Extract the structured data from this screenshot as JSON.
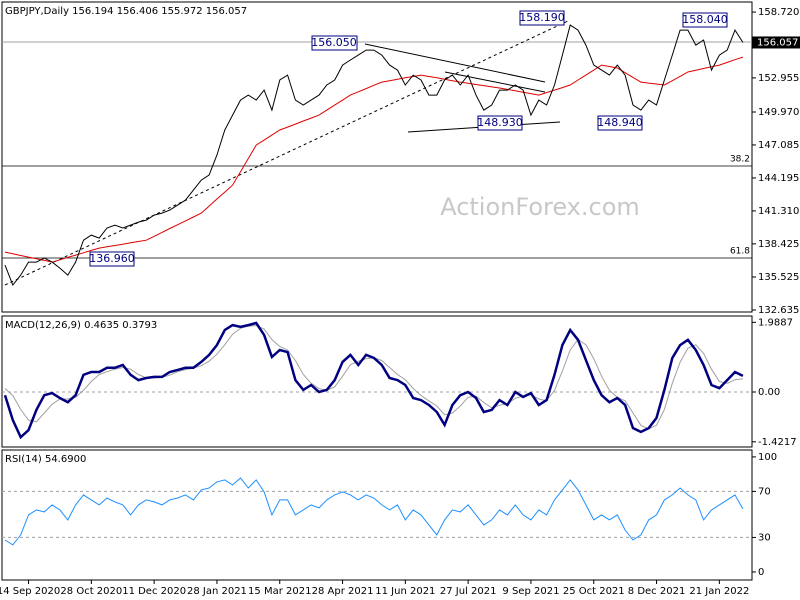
{
  "chart_data": [
    {
      "type": "line",
      "title": "GBPJPY,Daily  156.194 156.406 155.972 156.057",
      "watermark": "ActionForex.com",
      "categories": [
        null,
        null,
        null,
        "14 Sep 2020",
        null,
        null,
        null,
        null,
        null,
        null,
        null,
        "28 Oct 2020",
        null,
        null,
        null,
        null,
        null,
        null,
        null,
        "11 Dec 2020",
        null,
        null,
        null,
        null,
        null,
        null,
        null,
        "28 Jan 2021",
        null,
        null,
        null,
        null,
        null,
        null,
        null,
        "15 Mar 2021",
        null,
        null,
        null,
        null,
        null,
        null,
        null,
        "28 Apr 2021",
        null,
        null,
        null,
        null,
        null,
        null,
        null,
        "11 Jun 2021",
        null,
        null,
        null,
        null,
        null,
        null,
        null,
        "27 Jul 2021",
        null,
        null,
        null,
        null,
        null,
        null,
        null,
        "9 Sep 2021",
        null,
        null,
        null,
        null,
        null,
        null,
        null,
        "25 Oct 2021",
        null,
        null,
        null,
        null,
        null,
        null,
        null,
        "8 Dec 2021",
        null,
        null,
        null,
        null,
        null,
        null,
        null,
        "21 Jan 2022",
        null,
        null,
        null
      ],
      "series": [
        {
          "color": "#000000",
          "values": [
            136.57,
            134.82,
            135.69,
            136.83,
            136.83,
            137.18,
            136.83,
            136.3,
            135.69,
            136.83,
            138.75,
            139.19,
            138.93,
            139.81,
            140.07,
            139.81,
            140.07,
            140.33,
            140.51,
            140.94,
            141.12,
            141.38,
            141.82,
            142.26,
            143.13,
            144.01,
            144.45,
            146.2,
            148.39,
            149.7,
            151.01,
            151.45,
            151.01,
            151.89,
            150.14,
            152.77,
            153.2,
            151.01,
            150.58,
            151.01,
            151.45,
            152.33,
            152.77,
            154.08,
            154.52,
            154.95,
            155.39,
            155.39,
            154.95,
            154.08,
            153.64,
            152.33,
            153.2,
            152.77,
            151.45,
            151.45,
            152.77,
            153.2,
            152.33,
            153.2,
            151.45,
            150.14,
            150.58,
            151.89,
            151.89,
            152.33,
            151.89,
            149.7,
            151.01,
            150.58,
            152.33,
            154.95,
            157.58,
            157.14,
            155.83,
            154.08,
            153.64,
            153.2,
            154.08,
            153.2,
            150.58,
            150.14,
            151.01,
            150.58,
            152.77,
            154.95,
            157.14,
            157.14,
            155.83,
            156.27,
            153.64,
            154.95,
            155.39,
            157.14,
            156.06
          ]
        },
        {
          "color": "#e00000",
          "values": [
            137.7,
            137.56,
            137.41,
            137.27,
            137.12,
            136.98,
            136.83,
            137.03,
            137.24,
            137.44,
            137.64,
            137.85,
            138.05,
            138.17,
            138.28,
            138.4,
            138.52,
            138.63,
            138.75,
            139.09,
            139.43,
            139.77,
            140.1,
            140.44,
            140.78,
            141.12,
            141.73,
            142.35,
            142.96,
            143.57,
            144.74,
            145.9,
            147.07,
            147.51,
            147.95,
            148.39,
            148.65,
            148.91,
            149.18,
            149.44,
            149.7,
            150.14,
            150.57,
            151.01,
            151.45,
            151.74,
            152.02,
            152.31,
            152.59,
            152.71,
            152.83,
            152.96,
            153.08,
            153.2,
            153.08,
            152.96,
            152.83,
            152.71,
            152.59,
            152.49,
            152.38,
            152.28,
            152.17,
            152.07,
            151.95,
            151.83,
            151.7,
            151.58,
            151.45,
            151.67,
            151.89,
            152.11,
            152.33,
            152.77,
            153.2,
            153.64,
            154.08,
            153.95,
            153.82,
            153.41,
            153.0,
            152.59,
            152.5,
            152.42,
            152.33,
            152.71,
            153.09,
            153.47,
            153.62,
            153.78,
            153.93,
            154.08,
            154.31,
            154.55,
            154.78
          ]
        }
      ],
      "last_price": 156.057,
      "annotations": [
        "158.190",
        "156.050",
        "158.040",
        "148.930",
        "148.940",
        "136.960",
        "38.2",
        "61.8"
      ],
      "ylim": [
        132.46,
        159.6
      ],
      "yticks": [
        {
          "value": 158.72,
          "label": "158.720"
        },
        152.955,
        {
          "value": 149.97,
          "label": "149.970"
        },
        147.085,
        144.195,
        {
          "value": 141.31,
          "label": "141.310"
        },
        138.425,
        135.525,
        132.635
      ]
    },
    {
      "type": "line",
      "title": "MACD(12,26,9) 0.4635 0.3793",
      "series": [
        {
          "color": "#000080",
          "values": [
            -0.09,
            -0.8,
            -1.29,
            -1.09,
            -0.51,
            -0.09,
            -0.03,
            -0.17,
            -0.29,
            -0.09,
            0.49,
            0.57,
            0.57,
            0.69,
            0.69,
            0.77,
            0.49,
            0.34,
            0.4,
            0.43,
            0.43,
            0.57,
            0.63,
            0.69,
            0.69,
            0.86,
            1.06,
            1.34,
            1.77,
            1.91,
            1.86,
            1.91,
            1.97,
            1.63,
            1.0,
            1.2,
            1.14,
            0.34,
            0.06,
            0.2,
            0,
            0.06,
            0.34,
            0.86,
            1.06,
            0.77,
            1.06,
            0.97,
            0.77,
            0.4,
            0.34,
            0.2,
            -0.17,
            -0.23,
            -0.37,
            -0.57,
            -0.94,
            -0.37,
            -0.09,
            0,
            -0.17,
            -0.57,
            -0.51,
            -0.23,
            -0.37,
            0,
            -0.14,
            -0.03,
            -0.37,
            -0.23,
            0.49,
            1.34,
            1.77,
            1.49,
            0.91,
            0.34,
            -0.09,
            -0.29,
            -0.17,
            -0.37,
            -1.03,
            -1.14,
            -1.03,
            -0.74,
            0.06,
            0.97,
            1.34,
            1.49,
            1.2,
            0.77,
            0.2,
            0.11,
            0.34,
            0.57,
            0.46
          ]
        },
        {
          "color": "#a0a0a0",
          "values": [
            0.1,
            -0.1,
            -0.5,
            -0.8,
            -0.85,
            -0.6,
            -0.35,
            -0.2,
            -0.2,
            -0.15,
            0.05,
            0.3,
            0.5,
            0.58,
            0.65,
            0.7,
            0.65,
            0.5,
            0.4,
            0.4,
            0.42,
            0.48,
            0.58,
            0.64,
            0.68,
            0.75,
            0.88,
            1.08,
            1.35,
            1.65,
            1.82,
            1.88,
            1.9,
            1.8,
            1.5,
            1.3,
            1.2,
            0.9,
            0.5,
            0.25,
            0.1,
            0.05,
            0.15,
            0.45,
            0.78,
            0.88,
            0.95,
            0.98,
            0.9,
            0.7,
            0.5,
            0.35,
            0.1,
            -0.1,
            -0.25,
            -0.4,
            -0.65,
            -0.6,
            -0.4,
            -0.15,
            -0.12,
            -0.3,
            -0.45,
            -0.38,
            -0.33,
            -0.18,
            -0.12,
            -0.08,
            -0.2,
            -0.25,
            0.05,
            0.6,
            1.2,
            1.5,
            1.35,
            0.95,
            0.45,
            0.05,
            -0.15,
            -0.25,
            -0.6,
            -0.95,
            -1.05,
            -0.95,
            -0.5,
            0.25,
            0.85,
            1.25,
            1.35,
            1.1,
            0.65,
            0.3,
            0.25,
            0.35,
            0.38
          ]
        }
      ],
      "ylim": [
        -1.57,
        2.17
      ],
      "yticks": [
        1.9887,
        {
          "value": 0,
          "label": "0.00"
        },
        -1.4217
      ]
    },
    {
      "type": "line",
      "title": "RSI(14) 54.6900",
      "series": [
        {
          "color": "#1e90ff",
          "values": [
            27.8,
            23.5,
            32.2,
            49.6,
            53.9,
            52.2,
            58.3,
            53.9,
            45.2,
            58.3,
            67,
            62.6,
            58.3,
            64.3,
            60.9,
            58.3,
            49.6,
            58.3,
            62.6,
            60.9,
            58.3,
            62.6,
            64.3,
            67,
            62.6,
            71.3,
            73,
            78.3,
            80,
            75.7,
            81.7,
            73,
            80,
            69.6,
            49.6,
            62.6,
            62.6,
            49.6,
            53.9,
            58.3,
            55.7,
            62.6,
            67,
            69.6,
            67,
            62.6,
            67,
            64.3,
            58.3,
            53.9,
            58.3,
            45.2,
            53.9,
            49.6,
            40.9,
            32.2,
            45.2,
            53.9,
            52.2,
            58.3,
            49.6,
            40.9,
            45.2,
            53.9,
            49.6,
            58.3,
            49.6,
            45.2,
            53.9,
            49.6,
            62.6,
            71.3,
            80,
            71.3,
            58.3,
            45.2,
            49.6,
            45.2,
            49.6,
            36.5,
            27.8,
            32.2,
            45.2,
            49.6,
            62.6,
            67,
            73,
            67,
            62.6,
            45.2,
            53.9,
            58.3,
            62.6,
            67,
            54.69
          ]
        }
      ],
      "ylim": [
        -7,
        106
      ],
      "yticks": [
        100,
        70,
        30,
        0
      ]
    }
  ]
}
